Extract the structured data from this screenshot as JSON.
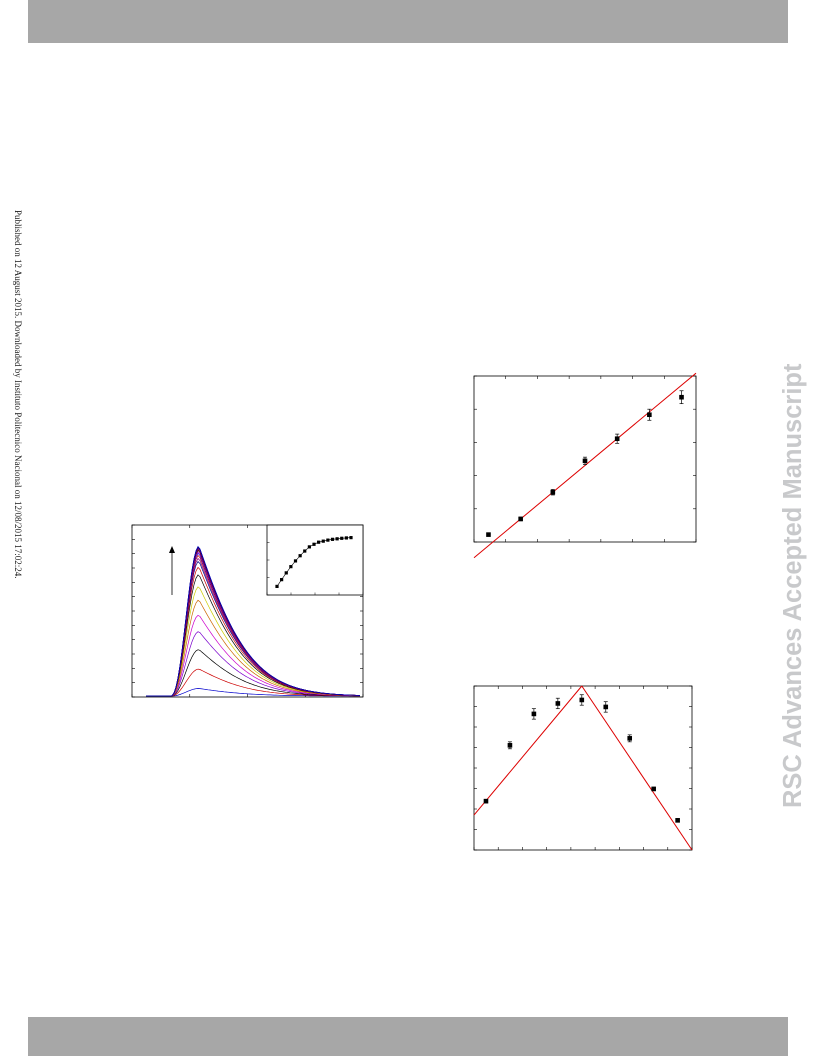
{
  "header": {
    "bar_color": "#a7a7a7"
  },
  "footer": {
    "bar_color": "#a7a7a7"
  },
  "side_note": "Published on 12 August 2015. Downloaded by Instituto Politecnico Nacional on 12/08/2015 17:02:24.",
  "watermark": "RSC Advances Accepted Manuscript",
  "chart_data": [
    {
      "type": "line",
      "id": "emission-spectra",
      "colors": [
        "#0000cc",
        "#cc0000",
        "#000000",
        "#7a00cc",
        "#cc00cc",
        "#cc6600",
        "#cccc00",
        "#000000",
        "#cc0000",
        "#000080",
        "#800080",
        "#cc0000",
        "#0000cc",
        "#cc00cc",
        "#000000",
        "#cc0000",
        "#0000cc",
        "#800080",
        "#000000",
        "#0000cc"
      ],
      "series_peaks": [
        0.05,
        0.18,
        0.31,
        0.43,
        0.54,
        0.64,
        0.73,
        0.81,
        0.86,
        0.9,
        0.92,
        0.94,
        0.955,
        0.965,
        0.975,
        0.982,
        0.988,
        0.993,
        0.997,
        1.0
      ],
      "arrow": "increasing",
      "inset": {
        "type": "scatter",
        "x": [
          1,
          2,
          3,
          4,
          5,
          6,
          7,
          8,
          9,
          10,
          11,
          12,
          13,
          14,
          15,
          16,
          17
        ],
        "y": [
          0.05,
          0.18,
          0.31,
          0.43,
          0.54,
          0.64,
          0.73,
          0.81,
          0.86,
          0.9,
          0.92,
          0.94,
          0.955,
          0.965,
          0.975,
          0.982,
          0.988
        ]
      }
    },
    {
      "type": "scatter",
      "id": "linear-fit",
      "x": [
        1,
        2,
        3,
        4,
        5,
        6,
        7
      ],
      "y": [
        0.28,
        0.45,
        0.74,
        1.08,
        1.32,
        1.58,
        1.77
      ],
      "err": [
        0.01,
        0.02,
        0.03,
        0.04,
        0.05,
        0.06,
        0.07
      ],
      "fit": {
        "slope": 0.29,
        "intercept": -0.13
      },
      "fit_color": "#dd0000"
    },
    {
      "type": "scatter",
      "id": "job-plot",
      "x": [
        0.1,
        0.2,
        0.3,
        0.4,
        0.5,
        0.6,
        0.7,
        0.8,
        0.9
      ],
      "y": [
        0.28,
        0.6,
        0.78,
        0.84,
        0.86,
        0.82,
        0.64,
        0.35,
        0.17
      ],
      "err": [
        0.01,
        0.02,
        0.03,
        0.03,
        0.03,
        0.03,
        0.02,
        0.01,
        0.01
      ],
      "fit_lines": [
        {
          "from": [
            0.05,
            0.2
          ],
          "to": [
            0.5,
            0.94
          ]
        },
        {
          "from": [
            0.5,
            0.94
          ],
          "to": [
            0.96,
            0.0
          ]
        }
      ],
      "fit_color": "#dd0000"
    }
  ]
}
